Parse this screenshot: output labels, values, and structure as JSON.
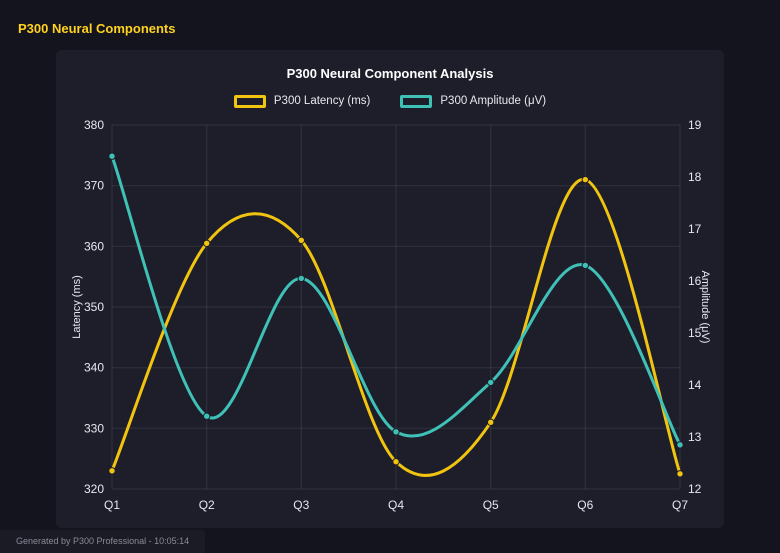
{
  "page": {
    "header_title": "P300 Neural Components",
    "header_color": "#ffd21e",
    "footer": "Generated by P300 Professional - 10:05:14"
  },
  "chart_data": {
    "type": "line",
    "title": "P300 Neural Component Analysis",
    "categories": [
      "Q1",
      "Q2",
      "Q3",
      "Q4",
      "Q5",
      "Q6",
      "Q7"
    ],
    "series": [
      {
        "name": "P300 Latency (ms)",
        "axis": "left",
        "color": "#f1c40f",
        "values": [
          323,
          360.5,
          361,
          324.5,
          331,
          371,
          322.5
        ]
      },
      {
        "name": "P300 Amplitude (μV)",
        "axis": "right",
        "color": "#3fc1b7",
        "values": [
          18.4,
          13.4,
          16.05,
          13.1,
          14.05,
          16.3,
          12.85
        ]
      }
    ],
    "left_axis": {
      "label": "Latency (ms)",
      "min": 320,
      "max": 380,
      "step": 10
    },
    "right_axis": {
      "label": "Amplitude (μV)",
      "min": 12,
      "max": 19,
      "step": 1
    },
    "grid": true,
    "legend_position": "top",
    "background": "#1e1e2b",
    "curve": "smooth"
  }
}
